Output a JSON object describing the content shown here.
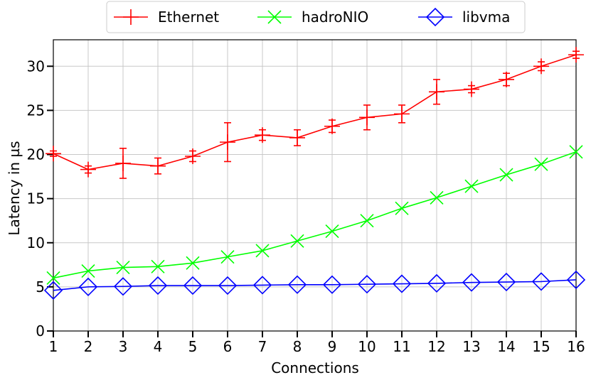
{
  "chart_data": {
    "type": "line",
    "xlabel": "Connections",
    "ylabel": "Latency in µs",
    "x": [
      1,
      2,
      3,
      4,
      5,
      6,
      7,
      8,
      9,
      10,
      11,
      12,
      13,
      14,
      15,
      16
    ],
    "xlim": [
      1,
      16
    ],
    "ylim": [
      0,
      33
    ],
    "yticks": [
      0,
      5,
      10,
      15,
      20,
      25,
      30
    ],
    "grid": true,
    "legend_position": "top-center",
    "series": [
      {
        "name": "Ethernet",
        "color": "#ff0000",
        "marker": "plus",
        "values": [
          20.1,
          18.3,
          19.0,
          18.7,
          19.8,
          21.4,
          22.2,
          21.9,
          23.2,
          24.2,
          24.6,
          27.1,
          27.4,
          28.5,
          30.0,
          31.3
        ],
        "errors": [
          0.3,
          0.4,
          1.7,
          0.9,
          0.6,
          2.2,
          0.6,
          0.9,
          0.7,
          1.4,
          1.0,
          1.4,
          0.4,
          0.7,
          0.5,
          0.4
        ]
      },
      {
        "name": "hadroNIO",
        "color": "#00ff00",
        "marker": "x",
        "values": [
          6.0,
          6.8,
          7.2,
          7.3,
          7.7,
          8.4,
          9.1,
          10.2,
          11.3,
          12.5,
          13.9,
          15.1,
          16.4,
          17.7,
          18.9,
          20.3
        ],
        "errors": []
      },
      {
        "name": "libvma",
        "color": "#0000ff",
        "marker": "diamond",
        "values": [
          4.6,
          5.0,
          5.05,
          5.15,
          5.15,
          5.15,
          5.2,
          5.25,
          5.25,
          5.3,
          5.35,
          5.4,
          5.5,
          5.55,
          5.6,
          5.8
        ],
        "errors": []
      }
    ]
  }
}
